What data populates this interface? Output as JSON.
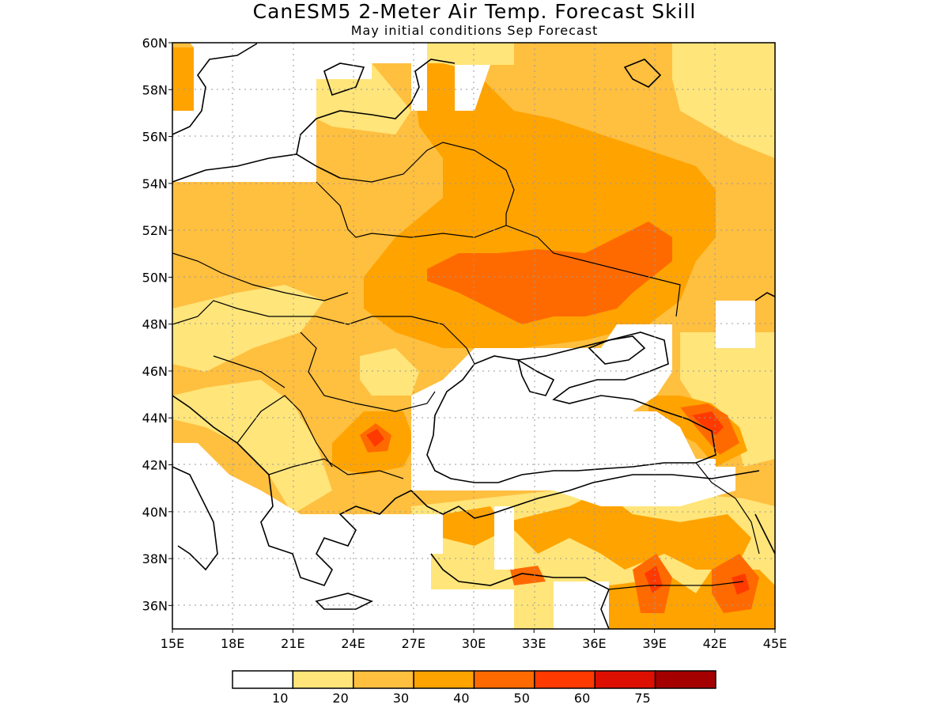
{
  "title": "CanESM5 2-Meter Air Temp. Forecast Skill",
  "subtitle": "May initial conditions  Sep Forecast",
  "map": {
    "lon_range": [
      15,
      45
    ],
    "lat_range": [
      35,
      60
    ],
    "x_ticks": [
      "15E",
      "18E",
      "21E",
      "24E",
      "27E",
      "30E",
      "33E",
      "36E",
      "39E",
      "42E",
      "45E"
    ],
    "y_ticks": [
      "36N",
      "38N",
      "40N",
      "42N",
      "44N",
      "46N",
      "48N",
      "50N",
      "52N",
      "54N",
      "56N",
      "58N",
      "60N"
    ],
    "gridlines": "dotted"
  },
  "colorbar": {
    "labels": [
      "10",
      "20",
      "30",
      "40",
      "50",
      "60",
      "75"
    ],
    "colors": [
      "#ffffff",
      "#ffe57a",
      "#ffbf3f",
      "#ffa300",
      "#ff6a00",
      "#ff3a00",
      "#dc0f00",
      "#a50000"
    ]
  }
}
